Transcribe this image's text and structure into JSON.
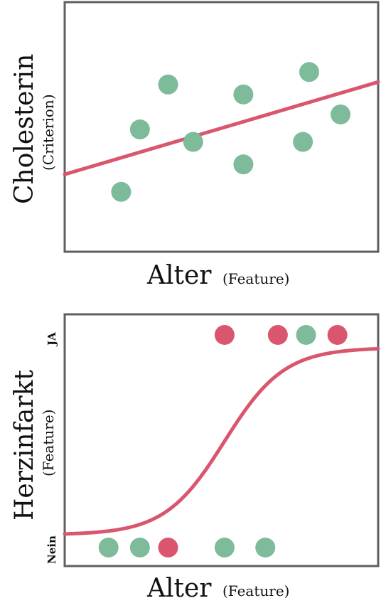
{
  "colors": {
    "green": "#7dbb9b",
    "red": "#d9566e",
    "frame": "#5f5f5f"
  },
  "chart_data": [
    {
      "type": "scatter",
      "title": "",
      "xlabel": "Alter",
      "xlabel_note": "(Feature)",
      "ylabel": "Cholesterin",
      "ylabel_note": "(Criterion)",
      "xlim": [
        0,
        10
      ],
      "ylim": [
        0,
        10
      ],
      "grid": false,
      "points": [
        {
          "x": 1.8,
          "y": 2.4,
          "class": "green"
        },
        {
          "x": 2.4,
          "y": 4.9,
          "class": "green"
        },
        {
          "x": 3.3,
          "y": 6.7,
          "class": "green"
        },
        {
          "x": 4.1,
          "y": 4.4,
          "class": "green"
        },
        {
          "x": 5.7,
          "y": 3.5,
          "class": "green"
        },
        {
          "x": 5.7,
          "y": 6.3,
          "class": "green"
        },
        {
          "x": 7.6,
          "y": 4.4,
          "class": "green"
        },
        {
          "x": 7.8,
          "y": 7.2,
          "class": "green"
        },
        {
          "x": 8.8,
          "y": 5.5,
          "class": "green"
        }
      ],
      "regression_line": {
        "x": [
          0,
          10
        ],
        "y": [
          3.1,
          6.8
        ],
        "color": "red"
      }
    },
    {
      "type": "scatter",
      "title": "",
      "xlabel": "Alter",
      "xlabel_note": "(Feature)",
      "ylabel": "Herzinfarkt",
      "ylabel_note": "(Feature)",
      "xlim": [
        0,
        10
      ],
      "ylim": [
        0,
        1
      ],
      "grid": false,
      "yticks": [
        {
          "value": 0,
          "label": "Nein"
        },
        {
          "value": 1,
          "label": "JA"
        }
      ],
      "points": [
        {
          "x": 1.4,
          "y": 0,
          "class": "green"
        },
        {
          "x": 2.4,
          "y": 0,
          "class": "green"
        },
        {
          "x": 3.3,
          "y": 0,
          "class": "red"
        },
        {
          "x": 5.1,
          "y": 0,
          "class": "green"
        },
        {
          "x": 6.4,
          "y": 0,
          "class": "green"
        },
        {
          "x": 5.1,
          "y": 1,
          "class": "red"
        },
        {
          "x": 6.8,
          "y": 1,
          "class": "red"
        },
        {
          "x": 7.7,
          "y": 1,
          "class": "green"
        },
        {
          "x": 8.7,
          "y": 1,
          "class": "red"
        }
      ],
      "logistic_curve": {
        "midpoint": 5.1,
        "steepness": 1.05,
        "low": 0.06,
        "high": 0.94,
        "color": "red"
      }
    }
  ]
}
